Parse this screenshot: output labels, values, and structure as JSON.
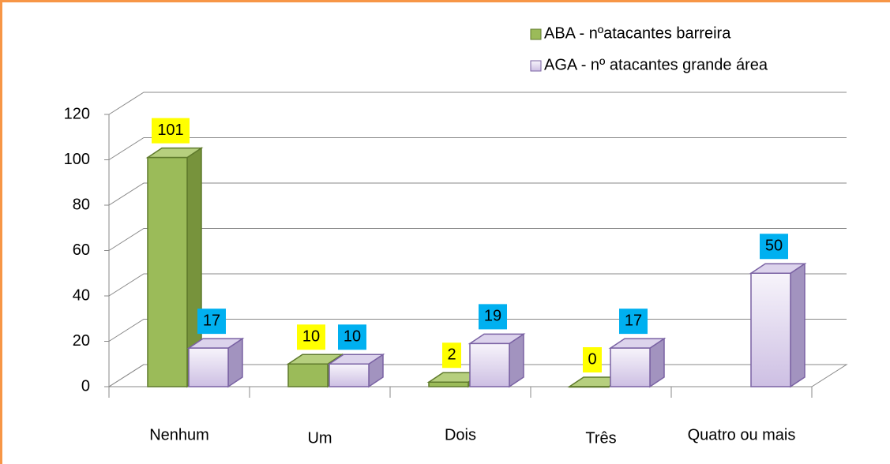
{
  "chart_data": {
    "type": "bar3d",
    "categories": [
      "Nenhum",
      "Um",
      "Dois",
      "Três",
      "Quatro ou mais"
    ],
    "series": [
      {
        "name": "ABA - nºatacantes barreira",
        "color": "#9bbb59",
        "label_color": "#ffff00",
        "values": [
          101,
          10,
          2,
          0,
          null
        ]
      },
      {
        "name": "AGA - nº atacantes grande área",
        "color": "#e6e0f2",
        "label_color": "#00b0f0",
        "values": [
          17,
          10,
          19,
          17,
          50
        ]
      }
    ],
    "ylim": [
      0,
      120
    ],
    "yticks": [
      0,
      20,
      40,
      60,
      80,
      100,
      120
    ],
    "grid": true,
    "legend": "top-right"
  }
}
